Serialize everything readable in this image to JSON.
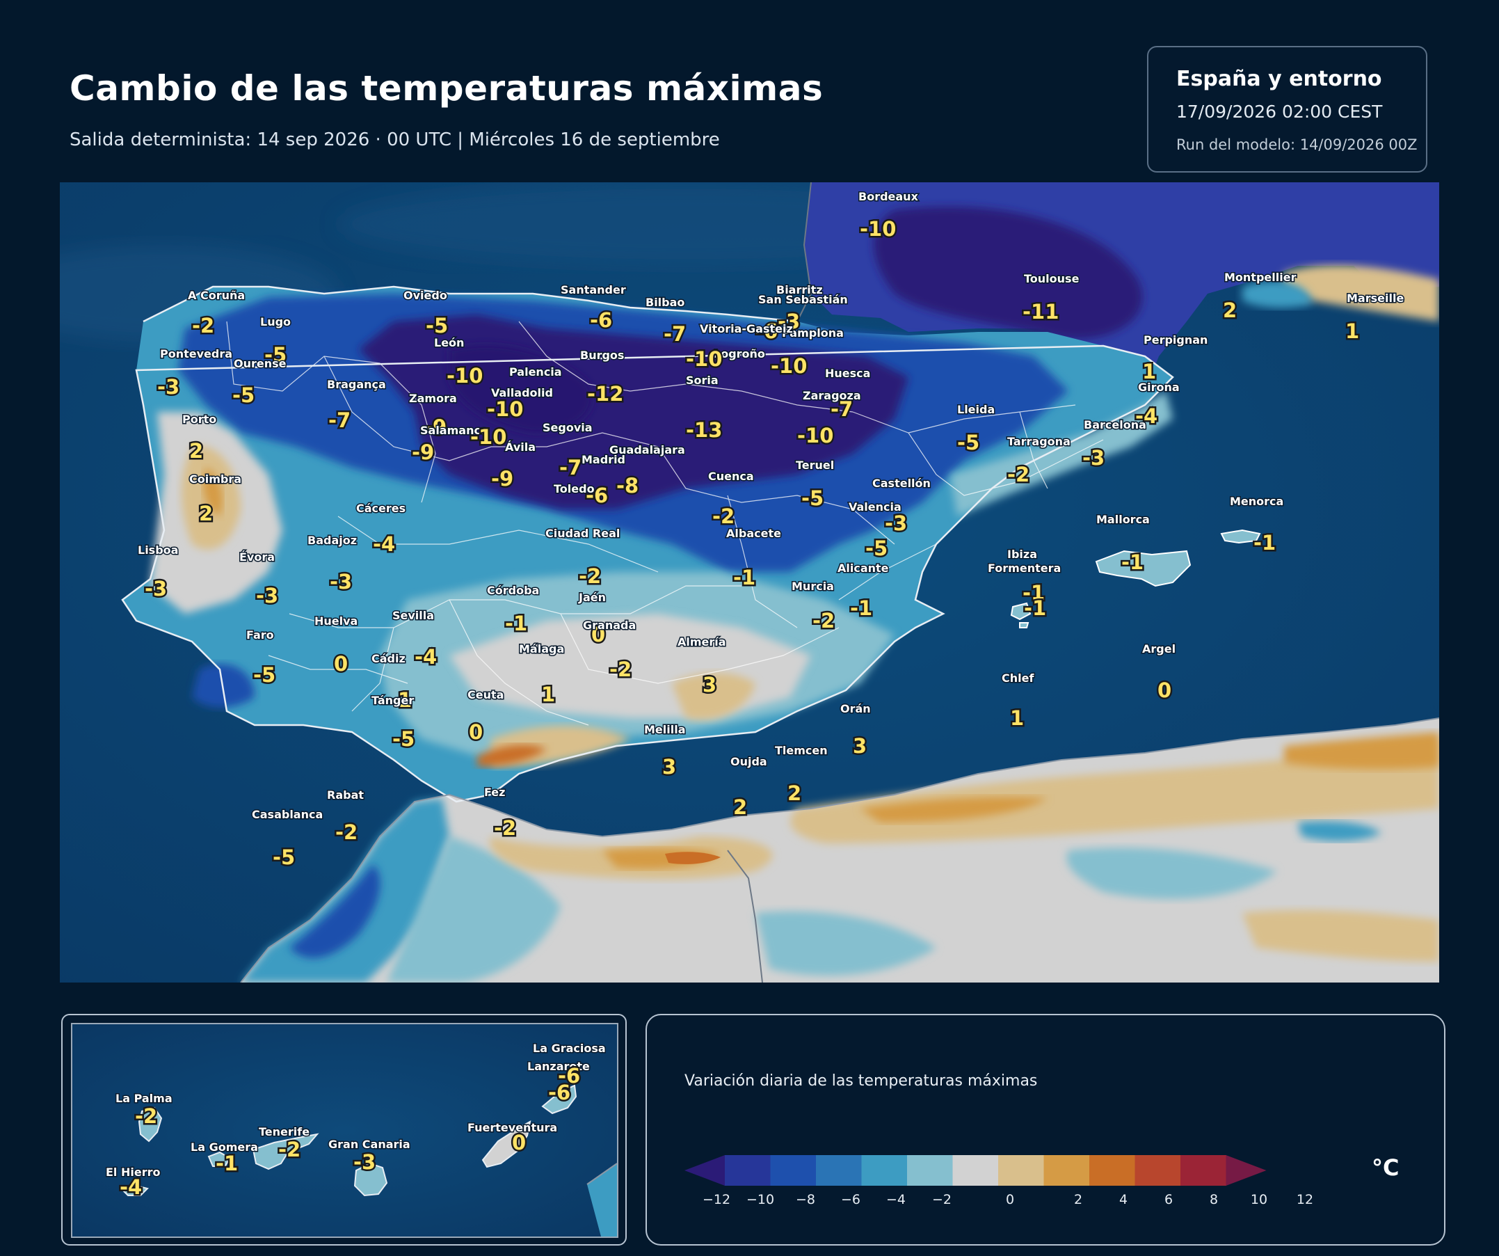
{
  "header": {
    "title": "Cambio de las temperaturas máximas",
    "subtitle": "Salida determinista: 14 sep 2026 · 00 UTC  |  Miércoles 16 de septiembre"
  },
  "infobox": {
    "region": "España y entorno",
    "datetime": "17/09/2026  02:00 CEST",
    "run": "Run del modelo: 14/09/2026 00Z"
  },
  "legend": {
    "title": "Variación diaria de las temperaturas máximas",
    "unit": "°C",
    "ticks": [
      "−12",
      "−10",
      "−8",
      "−6",
      "−4",
      "−2",
      "0",
      "2",
      "4",
      "6",
      "8",
      "10",
      "12"
    ],
    "colors": [
      "#2b1b77",
      "#263699",
      "#1e50ad",
      "#2a74b5",
      "#3d9cc2",
      "#85bfcf",
      "#d2d2d2",
      "#d9bf8c",
      "#d59b45",
      "#c96e26",
      "#b8462d",
      "#9b2436",
      "#761a45"
    ],
    "colors_note": "bins from -12 to 12 in steps of 2, with extend arrows"
  },
  "cities": [
    {
      "name": "Bordeaux",
      "value": "-10"
    },
    {
      "name": "Toulouse",
      "value": "-11"
    },
    {
      "name": "Montpellier",
      "value": "2"
    },
    {
      "name": "Marseille",
      "value": "1"
    },
    {
      "name": "Perpignan",
      "value": "1"
    },
    {
      "name": "Girona",
      "value": "-4"
    },
    {
      "name": "Barcelona",
      "value": "-3"
    },
    {
      "name": "Lleida",
      "value": "-5"
    },
    {
      "name": "Tarragona",
      "value": "-2"
    },
    {
      "name": "Biarritz",
      "value": "-3"
    },
    {
      "name": "San Sebastián",
      "value": "-6"
    },
    {
      "name": "Pamplona",
      "value": "-10"
    },
    {
      "name": "Vitoria-Gasteiz",
      "value": "-7"
    },
    {
      "name": "Bilbao",
      "value": ""
    },
    {
      "name": "Logroño",
      "value": "-10"
    },
    {
      "name": "Santander",
      "value": "-6"
    },
    {
      "name": "Oviedo",
      "value": "-5"
    },
    {
      "name": "A Coruña",
      "value": "-2"
    },
    {
      "name": "Lugo",
      "value": "-5"
    },
    {
      "name": "Pontevedra",
      "value": "-3"
    },
    {
      "name": "Ourense",
      "value": "-5"
    },
    {
      "name": "León",
      "value": "-10"
    },
    {
      "name": "Burgos",
      "value": "-12"
    },
    {
      "name": "Palencia",
      "value": ""
    },
    {
      "name": "Valladolid",
      "value": "-10"
    },
    {
      "name": "Soria",
      "value": "-13"
    },
    {
      "name": "Huesca",
      "value": "-7"
    },
    {
      "name": "Zaragoza",
      "value": "-10"
    },
    {
      "name": "Bragança",
      "value": "-7"
    },
    {
      "name": "Zamora",
      "value": "-9"
    },
    {
      "name": "Salamanca",
      "value": "-9"
    },
    {
      "name": "Segovia",
      "value": "-10"
    },
    {
      "name": "Ávila",
      "value": "-9"
    },
    {
      "name": "Madrid",
      "value": "-7"
    },
    {
      "name": "Guadalajara",
      "value": "-8"
    },
    {
      "name": "Porto",
      "value": "2"
    },
    {
      "name": "Coimbra",
      "value": "2"
    },
    {
      "name": "Toledo",
      "value": "-6"
    },
    {
      "name": "Cuenca",
      "value": "-2"
    },
    {
      "name": "Teruel",
      "value": "-5"
    },
    {
      "name": "Castellón",
      "value": "-3"
    },
    {
      "name": "Valencia",
      "value": "-5"
    },
    {
      "name": "Cáceres",
      "value": "-4"
    },
    {
      "name": "Badajoz",
      "value": "-3"
    },
    {
      "name": "Ciudad Real",
      "value": "-2"
    },
    {
      "name": "Albacete",
      "value": "-1"
    },
    {
      "name": "Lisboa",
      "value": "-3"
    },
    {
      "name": "Évora",
      "value": "-3"
    },
    {
      "name": "Alicante",
      "value": "-1"
    },
    {
      "name": "Murcia",
      "value": "-2"
    },
    {
      "name": "Córdoba",
      "value": "-1"
    },
    {
      "name": "Jaén",
      "value": "0"
    },
    {
      "name": "Granada",
      "value": "-2"
    },
    {
      "name": "Sevilla",
      "value": "-4"
    },
    {
      "name": "Huelva",
      "value": "0"
    },
    {
      "name": "Faro",
      "value": "-5"
    },
    {
      "name": "Málaga",
      "value": "1"
    },
    {
      "name": "Almería",
      "value": "3"
    },
    {
      "name": "Cádiz",
      "value": "-1"
    },
    {
      "name": "Tánger",
      "value": "-5"
    },
    {
      "name": "Ceuta",
      "value": "0"
    },
    {
      "name": "Mallorca",
      "value": "-1"
    },
    {
      "name": "Menorca",
      "value": "-1"
    },
    {
      "name": "Ibiza",
      "value": "-1"
    },
    {
      "name": "Formentera",
      "value": "-1"
    },
    {
      "name": "Argel",
      "value": "0"
    },
    {
      "name": "Chlef",
      "value": "1"
    },
    {
      "name": "Orán",
      "value": "3"
    },
    {
      "name": "Melilla",
      "value": "3"
    },
    {
      "name": "Tlemcen",
      "value": "2"
    },
    {
      "name": "Oujda",
      "value": "2"
    },
    {
      "name": "Rabat",
      "value": "-2"
    },
    {
      "name": "Fez",
      "value": "-2"
    },
    {
      "name": "Casablanca",
      "value": "-5"
    }
  ],
  "canarias": [
    {
      "name": "La Graciosa",
      "value": ""
    },
    {
      "name": "Lanzarote",
      "value": "-6"
    },
    {
      "name": "",
      "value": "-6"
    },
    {
      "name": "La Palma",
      "value": "-2"
    },
    {
      "name": "Tenerife",
      "value": "-2"
    },
    {
      "name": "La Gomera",
      "value": "-1"
    },
    {
      "name": "Gran Canaria",
      "value": "-3"
    },
    {
      "name": "Fuerteventura",
      "value": "0"
    },
    {
      "name": "El Hierro",
      "value": "-4"
    }
  ]
}
